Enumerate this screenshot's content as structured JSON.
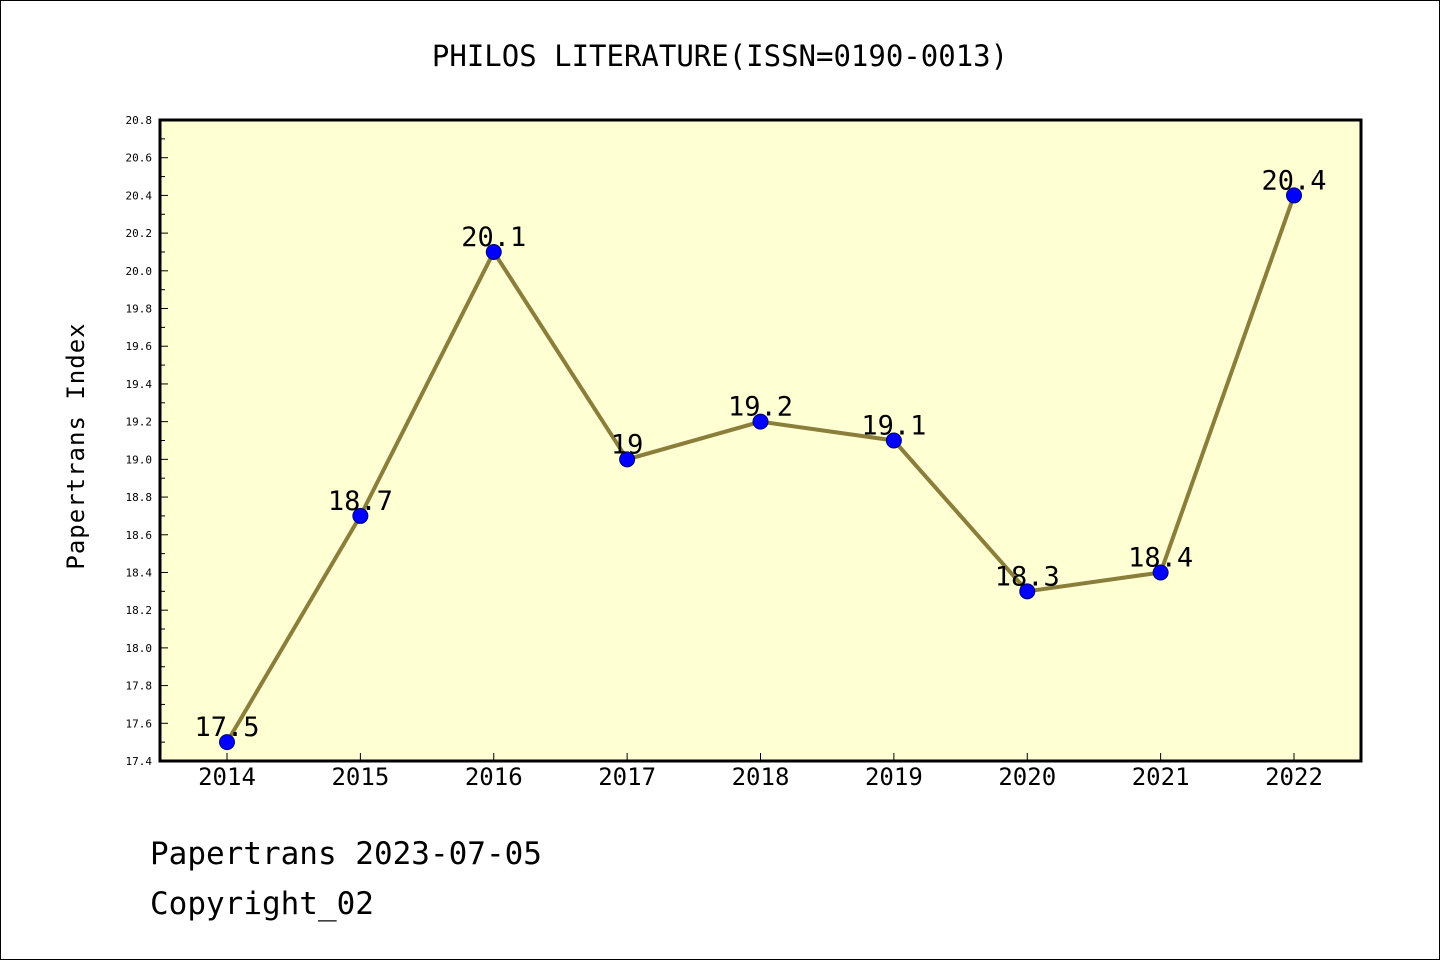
{
  "chart_data": {
    "type": "line",
    "title": "PHILOS LITERATURE(ISSN=0190-0013)",
    "xlabel": "",
    "ylabel": "Papertrans Index",
    "categories": [
      "2014",
      "2015",
      "2016",
      "2017",
      "2018",
      "2019",
      "2020",
      "2021",
      "2022"
    ],
    "series": [
      {
        "values": [
          17.5,
          18.7,
          20.1,
          19.0,
          19.2,
          19.1,
          18.3,
          18.4,
          20.4
        ],
        "data_labels": [
          "17.5",
          "18.7",
          "20.1",
          "19",
          "19.2",
          "19.1",
          "18.3",
          "18.4",
          "20.4"
        ]
      }
    ],
    "ylim": [
      17.4,
      20.8
    ],
    "yticks": [
      "17.4",
      "17.6",
      "17.8",
      "18.0",
      "18.2",
      "18.4",
      "18.6",
      "18.8",
      "19.0",
      "19.2",
      "19.4",
      "19.6",
      "19.8",
      "20.0",
      "20.2",
      "20.4",
      "20.6",
      "20.8"
    ],
    "grid": false,
    "legend": "none",
    "colors": {
      "plot_background": "#ffffd4",
      "line": "#8b7d3a",
      "marker": "#0000ff"
    }
  },
  "footer": {
    "line1": "Papertrans 2023-07-05",
    "line2": "Copyright_02"
  }
}
